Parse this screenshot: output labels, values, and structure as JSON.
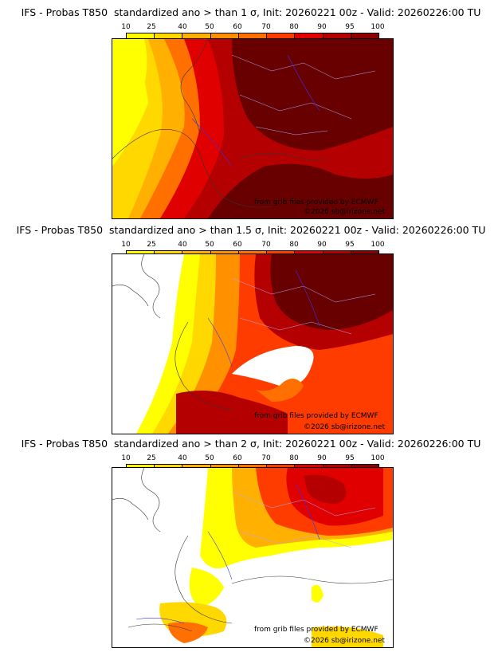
{
  "palette": [
    "#ffff00",
    "#ffd800",
    "#ffb000",
    "#ff9000",
    "#ff7000",
    "#ff3c00",
    "#e00000",
    "#b40000",
    "#8c0000",
    "#680000"
  ],
  "legend_ticks": [
    "10",
    "25",
    "40",
    "50",
    "60",
    "70",
    "80",
    "90",
    "95",
    "100"
  ],
  "credit_source": "from grib files provided by ECMWF",
  "credit_copyright": "©2026 sb@irizone.net",
  "panels": [
    {
      "title": "IFS - Probas T850  standardized ano > than 1 σ, Init: 20260221 00z - Valid: 20260226:00 TU"
    },
    {
      "title": "IFS - Probas T850  standardized ano > than 1.5 σ, Init: 20260221 00z - Valid: 20260226:00 TU"
    },
    {
      "title": "IFS - Probas T850  standardized ano > than 2 σ, Init: 20260221 00z - Valid: 20260226:00 TU"
    }
  ]
}
